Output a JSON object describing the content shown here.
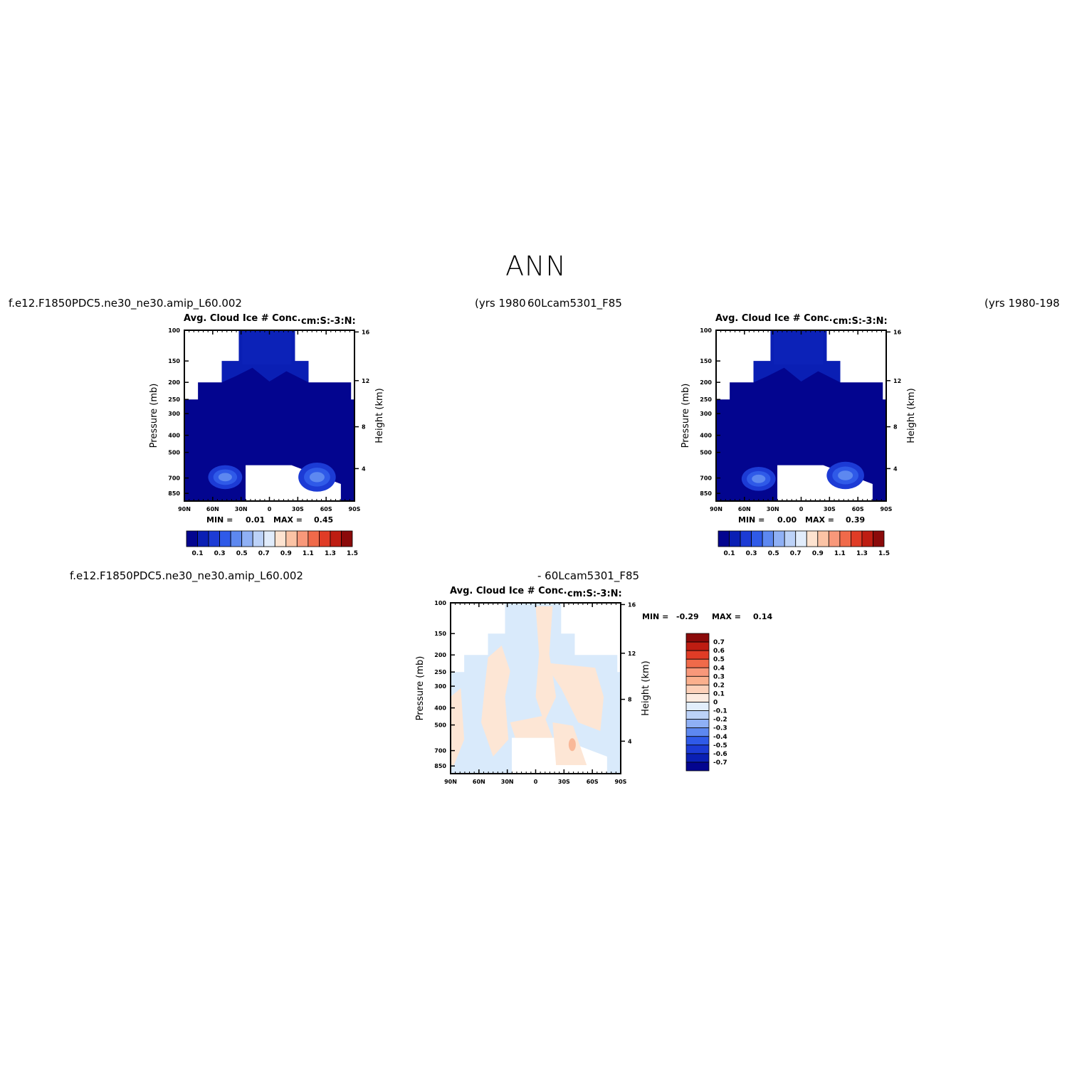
{
  "title": "ANN",
  "panels": [
    {
      "case_label": "f.e12.F1850PDC5.ne30_ne30.amip_L60.002",
      "years": "(yrs 1980",
      "plot_title": "Avg. Cloud Ice # Conc.",
      "units": "cm:S:-3:N:",
      "min_label": "MIN =",
      "min_value": "0.01",
      "max_label": "MAX =",
      "max_value": "0.45"
    },
    {
      "case_label": "60Lcam5301_F85",
      "years": "(yrs 1980-198",
      "plot_title": "Avg. Cloud Ice # Conc.",
      "units": "cm:S:-3:N:",
      "min_label": "MIN =",
      "min_value": "0.00",
      "max_label": "MAX =",
      "max_value": "0.39"
    },
    {
      "case_label": "f.e12.F1850PDC5.ne30_ne30.amip_L60.002",
      "case_label_2": "- 60Lcam5301_F85",
      "plot_title": "Avg. Cloud Ice # Conc.",
      "units": "cm:S:-3:N:",
      "min_label": "MIN =",
      "min_value": "-0.29",
      "max_label": "MAX =",
      "max_value": "0.14"
    }
  ],
  "colors": {
    "dark_blue": "#03058f",
    "mid_blue": "#2249d8",
    "light_blue": "#5d88f0",
    "diff_blue": "#d9eafb",
    "diff_peach": "#fde6d5",
    "diff_orange": "#f9b898"
  },
  "chart_data": [
    {
      "type": "heatmap",
      "title": "Avg. Cloud Ice # Conc.",
      "units": "cm:S:-3:N:",
      "ylabel": "Pressure (mb)",
      "ylabel_right": "Height (km)",
      "x_ticks": [
        "90N",
        "60N",
        "30N",
        "0",
        "30S",
        "60S",
        "90S"
      ],
      "y_ticks": [
        "100",
        "150",
        "200",
        "250",
        "300",
        "400",
        "500",
        "700",
        "850"
      ],
      "y_right_ticks": [
        "16",
        "12",
        "8",
        "4"
      ],
      "colorbar": {
        "orientation": "horizontal",
        "labels": [
          "0.1",
          "0.3",
          "0.5",
          "0.7",
          "0.9",
          "1.1",
          "1.3",
          "1.5"
        ],
        "colors": [
          "#03058f",
          "#0a1fb4",
          "#1c3bd5",
          "#2f5ae8",
          "#5d88f0",
          "#8fb0f5",
          "#bcd2f8",
          "#e1ecfb",
          "#fde3d0",
          "#fbc3a5",
          "#f8987a",
          "#f06a4a",
          "#e03c26",
          "#be1d12",
          "#8b0a0a"
        ]
      },
      "min": 0.01,
      "max": 0.45
    },
    {
      "type": "heatmap",
      "title": "Avg. Cloud Ice # Conc.",
      "units": "cm:S:-3:N:",
      "ylabel": "Pressure (mb)",
      "ylabel_right": "Height (km)",
      "x_ticks": [
        "90N",
        "60N",
        "30N",
        "0",
        "30S",
        "60S",
        "90S"
      ],
      "y_ticks": [
        "100",
        "150",
        "200",
        "250",
        "300",
        "400",
        "500",
        "700",
        "850"
      ],
      "y_right_ticks": [
        "16",
        "12",
        "8",
        "4"
      ],
      "colorbar": {
        "orientation": "horizontal",
        "labels": [
          "0.1",
          "0.3",
          "0.5",
          "0.7",
          "0.9",
          "1.1",
          "1.3",
          "1.5"
        ],
        "colors": [
          "#03058f",
          "#0a1fb4",
          "#1c3bd5",
          "#2f5ae8",
          "#5d88f0",
          "#8fb0f5",
          "#bcd2f8",
          "#e1ecfb",
          "#fde3d0",
          "#fbc3a5",
          "#f8987a",
          "#f06a4a",
          "#e03c26",
          "#be1d12",
          "#8b0a0a"
        ]
      },
      "min": 0.0,
      "max": 0.39
    },
    {
      "type": "heatmap",
      "title": "Avg. Cloud Ice # Conc.",
      "units": "cm:S:-3:N:",
      "ylabel": "Pressure (mb)",
      "ylabel_right": "Height (km)",
      "x_ticks": [
        "90N",
        "60N",
        "30N",
        "0",
        "30S",
        "60S",
        "90S"
      ],
      "y_ticks": [
        "100",
        "150",
        "200",
        "250",
        "300",
        "400",
        "500",
        "700",
        "850"
      ],
      "y_right_ticks": [
        "16",
        "12",
        "8",
        "4"
      ],
      "colorbar": {
        "orientation": "vertical",
        "labels": [
          "0.7",
          "0.6",
          "0.5",
          "0.4",
          "0.3",
          "0.2",
          "0.1",
          "0",
          "-0.1",
          "-0.2",
          "-0.3",
          "-0.4",
          "-0.5",
          "-0.6",
          "-0.7"
        ],
        "colors": [
          "#8b0a0a",
          "#be1d12",
          "#e03c26",
          "#f06a4a",
          "#f8987a",
          "#fbb08d",
          "#fdd0b8",
          "#fdebe0",
          "#e2eefb",
          "#bcd2f8",
          "#8fb0f5",
          "#5d88f0",
          "#2f5ae8",
          "#1c3bd5",
          "#0a1fb4",
          "#03058f"
        ]
      },
      "min": -0.29,
      "max": 0.14
    }
  ]
}
